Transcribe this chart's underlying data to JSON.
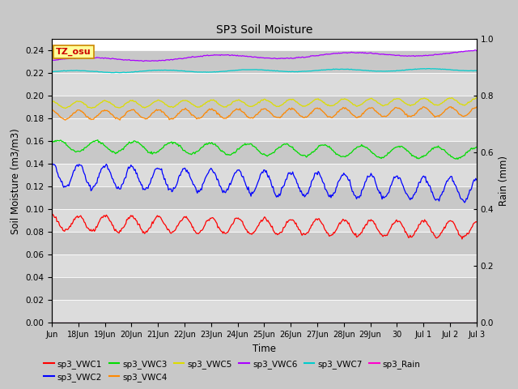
{
  "title": "SP3 Soil Moisture",
  "xlabel": "Time",
  "ylabel_left": "Soil Moisture (m3/m3)",
  "ylabel_right": "Rain (mm)",
  "ylim_left": [
    0.0,
    0.25
  ],
  "ylim_right": [
    0.0,
    1.0
  ],
  "yticks_left": [
    0.0,
    0.02,
    0.04,
    0.06,
    0.08,
    0.1,
    0.12,
    0.14,
    0.16,
    0.18,
    0.2,
    0.22,
    0.24
  ],
  "yticks_right_vals": [
    0.0,
    0.2,
    0.4,
    0.6,
    0.8,
    1.0
  ],
  "yticks_right_labels": [
    "0.0",
    "0.2",
    "0.4",
    "0.6",
    "0.8",
    "1.0"
  ],
  "fig_bg": "#c8c8c8",
  "plot_bg_light": "#dcdcdc",
  "plot_bg_dark": "#c8c8c8",
  "grid_color": "#ffffff",
  "series_order": [
    "sp3_VWC1",
    "sp3_VWC2",
    "sp3_VWC3",
    "sp3_VWC4",
    "sp3_VWC5",
    "sp3_VWC6",
    "sp3_VWC7",
    "sp3_Rain"
  ],
  "series": {
    "sp3_VWC1": {
      "color": "#ff0000",
      "base": 0.088,
      "amp": 0.007,
      "trend": -0.006,
      "freq": 1.0,
      "phase": 1.5
    },
    "sp3_VWC2": {
      "color": "#0000ff",
      "base": 0.13,
      "amp": 0.01,
      "trend": -0.013,
      "freq": 1.0,
      "phase": 1.5
    },
    "sp3_VWC3": {
      "color": "#00dd00",
      "base": 0.156,
      "amp": 0.005,
      "trend": -0.007,
      "freq": 0.7,
      "phase": 0.5
    },
    "sp3_VWC4": {
      "color": "#ff8800",
      "base": 0.183,
      "amp": 0.004,
      "trend": 0.003,
      "freq": 1.0,
      "phase": 1.5
    },
    "sp3_VWC5": {
      "color": "#dddd00",
      "base": 0.192,
      "amp": 0.003,
      "trend": 0.003,
      "freq": 1.0,
      "phase": 1.5
    },
    "sp3_VWC6": {
      "color": "#aa00ff",
      "base": 0.231,
      "amp": 0.002,
      "trend": 0.007,
      "freq": 0.2,
      "phase": 0.0
    },
    "sp3_VWC7": {
      "color": "#00cccc",
      "base": 0.221,
      "amp": 0.001,
      "trend": 0.002,
      "freq": 0.3,
      "phase": 0.0
    },
    "sp3_Rain": {
      "color": "#ff00cc",
      "base": 0.001,
      "amp": 0.0,
      "trend": 0.0,
      "freq": 0.0,
      "phase": 0.0
    }
  },
  "legend_entries": [
    {
      "label": "sp3_VWC1",
      "color": "#ff0000"
    },
    {
      "label": "sp3_VWC2",
      "color": "#0000ff"
    },
    {
      "label": "sp3_VWC3",
      "color": "#00dd00"
    },
    {
      "label": "sp3_VWC4",
      "color": "#ff8800"
    },
    {
      "label": "sp3_VWC5",
      "color": "#dddd00"
    },
    {
      "label": "sp3_VWC6",
      "color": "#aa00ff"
    },
    {
      "label": "sp3_VWC7",
      "color": "#00cccc"
    },
    {
      "label": "sp3_Rain",
      "color": "#ff00cc"
    }
  ],
  "tz_label": "TZ_osu",
  "tz_bg": "#ffff99",
  "tz_border": "#cc8800",
  "n_points": 500,
  "total_days": 16.0,
  "xtick_positions": [
    0.0,
    1.0,
    2.0,
    3.0,
    4.0,
    5.0,
    6.0,
    7.0,
    8.0,
    9.0,
    10.0,
    11.0,
    12.0,
    13.0,
    14.0,
    15.0,
    16.0
  ],
  "xtick_labels": [
    "Jun",
    "18Jun",
    "19Jun",
    "20Jun",
    "21Jun",
    "22Jun",
    "23Jun",
    "24Jun",
    "25Jun",
    "26Jun",
    "27Jun",
    "28Jun",
    "29Jun",
    "30",
    "Jul 1",
    "Jul 2",
    "Jul 3"
  ]
}
